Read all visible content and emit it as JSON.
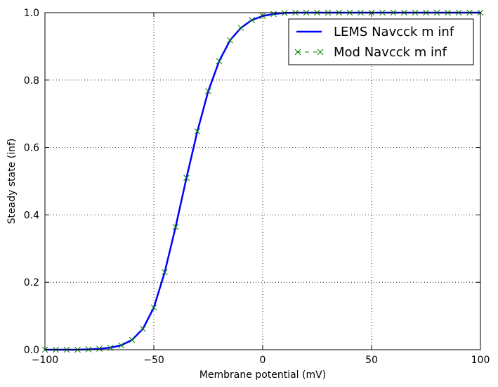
{
  "chart_data": {
    "type": "line",
    "title": "",
    "xlabel": "Membrane potential (mV)",
    "ylabel": "Steady state (inf)",
    "xlim": [
      -100,
      100
    ],
    "ylim": [
      0.0,
      1.0
    ],
    "xticks": [
      -100,
      -50,
      0,
      50,
      100
    ],
    "xtick_labels": [
      "−100",
      "−50",
      "0",
      "50",
      "100"
    ],
    "yticks": [
      0.0,
      0.2,
      0.4,
      0.6,
      0.8,
      1.0
    ],
    "ytick_labels": [
      "0.0",
      "0.2",
      "0.4",
      "0.6",
      "0.8",
      "1.0"
    ],
    "grid": true,
    "legend_position": "top-right",
    "series": [
      {
        "name": "LEMS Navcck m inf",
        "style": "solid-line",
        "color": "#0000ff",
        "x": [
          -100,
          -95,
          -90,
          -85,
          -80,
          -75,
          -70,
          -65,
          -60,
          -55,
          -50,
          -45,
          -40,
          -35,
          -30,
          -25,
          -20,
          -15,
          -10,
          -5,
          0,
          5,
          10,
          15,
          20,
          25,
          30,
          35,
          40,
          45,
          50,
          55,
          60,
          65,
          70,
          75,
          80,
          85,
          90,
          95,
          100
        ],
        "y": [
          0.0,
          0.0,
          0.0,
          0.0,
          0.001,
          0.003,
          0.006,
          0.013,
          0.029,
          0.062,
          0.125,
          0.23,
          0.364,
          0.51,
          0.648,
          0.767,
          0.856,
          0.918,
          0.955,
          0.978,
          0.99,
          0.996,
          0.999,
          1.0,
          1.0,
          1.0,
          1.0,
          1.0,
          1.0,
          1.0,
          1.0,
          1.0,
          1.0,
          1.0,
          1.0,
          1.0,
          1.0,
          1.0,
          1.0,
          1.0,
          1.0
        ]
      },
      {
        "name": "Mod Navcck m inf",
        "style": "dashed-x-markers",
        "color": "#008000",
        "x": [
          -100,
          -95,
          -90,
          -85,
          -80,
          -75,
          -70,
          -65,
          -60,
          -55,
          -50,
          -45,
          -40,
          -35,
          -30,
          -25,
          -20,
          -15,
          -10,
          -5,
          0,
          5,
          10,
          15,
          20,
          25,
          30,
          35,
          40,
          45,
          50,
          55,
          60,
          65,
          70,
          75,
          80,
          85,
          90,
          95,
          100
        ],
        "y": [
          0.0,
          0.0,
          0.0,
          0.0,
          0.001,
          0.003,
          0.006,
          0.013,
          0.029,
          0.062,
          0.125,
          0.23,
          0.364,
          0.51,
          0.648,
          0.767,
          0.856,
          0.918,
          0.955,
          0.978,
          0.99,
          0.996,
          0.999,
          1.0,
          1.0,
          1.0,
          1.0,
          1.0,
          1.0,
          1.0,
          1.0,
          1.0,
          1.0,
          1.0,
          1.0,
          1.0,
          1.0,
          1.0,
          1.0,
          1.0,
          1.0
        ]
      }
    ]
  }
}
